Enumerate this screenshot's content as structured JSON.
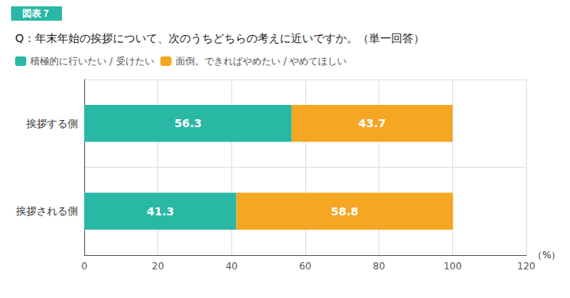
{
  "chart_data": {
    "type": "bar",
    "orientation": "horizontal",
    "stacked": true,
    "title": "図表７",
    "subtitle": "Q：年末年始の挨拶について、次のうちどちらの考えに近いですか。（単一回答）",
    "categories": [
      "挨拶する側",
      "挨拶される側"
    ],
    "series": [
      {
        "name": "積極的に行いたい / 受けたい",
        "color": "#29b8a4",
        "values": [
          56.3,
          41.3
        ]
      },
      {
        "name": "面倒。できればやめたい / やめてほしい",
        "color": "#f5a623",
        "values": [
          43.7,
          58.8
        ]
      }
    ],
    "xlabel": "（%）",
    "xlim": [
      0,
      120
    ],
    "xticks": [
      0,
      20,
      40,
      60,
      80,
      100,
      120
    ],
    "grid": true,
    "legend": "upper left",
    "data_labels": true
  }
}
